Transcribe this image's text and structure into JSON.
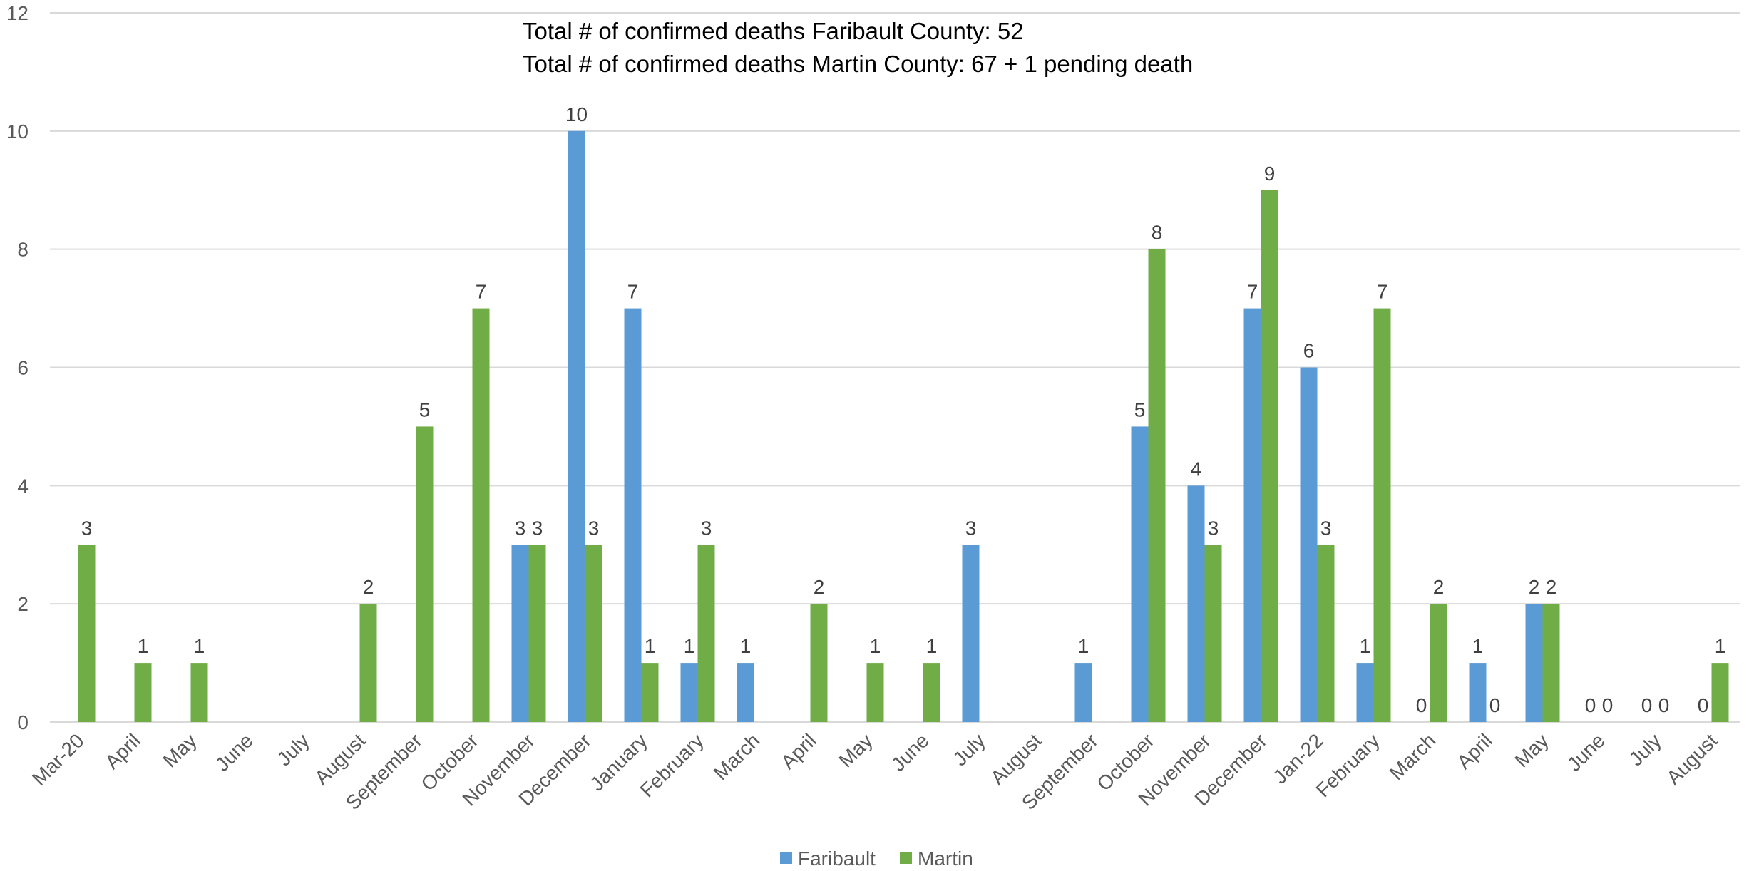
{
  "chart_data": {
    "type": "bar",
    "annotations": [
      "Total # of confirmed deaths Faribault County: 52",
      "Total # of confirmed deaths Martin County: 67 + 1 pending death"
    ],
    "categories": [
      "Mar-20",
      "April",
      "May",
      "June",
      "July",
      "August",
      "September",
      "October",
      "November",
      "December",
      "January",
      "February",
      "March",
      "April",
      "May",
      "June",
      "July",
      "August",
      "September",
      "October",
      "November",
      "December",
      "Jan-22",
      "February",
      "March",
      "April",
      "May",
      "June",
      "July",
      "August"
    ],
    "series": [
      {
        "name": "Faribault",
        "color": "#5b9bd5",
        "values": [
          null,
          null,
          null,
          null,
          null,
          null,
          null,
          null,
          3,
          10,
          7,
          1,
          1,
          null,
          null,
          null,
          3,
          null,
          1,
          5,
          4,
          7,
          6,
          1,
          0,
          1,
          2,
          0,
          0,
          0
        ]
      },
      {
        "name": "Martin",
        "color": "#70ad47",
        "values": [
          3,
          1,
          1,
          null,
          null,
          2,
          5,
          7,
          3,
          3,
          1,
          3,
          null,
          2,
          1,
          1,
          null,
          null,
          null,
          8,
          3,
          9,
          3,
          7,
          2,
          0,
          2,
          0,
          0,
          1
        ]
      }
    ],
    "ylim": [
      0,
      12
    ],
    "yticks": [
      0,
      2,
      4,
      6,
      8,
      10,
      12
    ],
    "grid": true,
    "legend": "bottom"
  }
}
